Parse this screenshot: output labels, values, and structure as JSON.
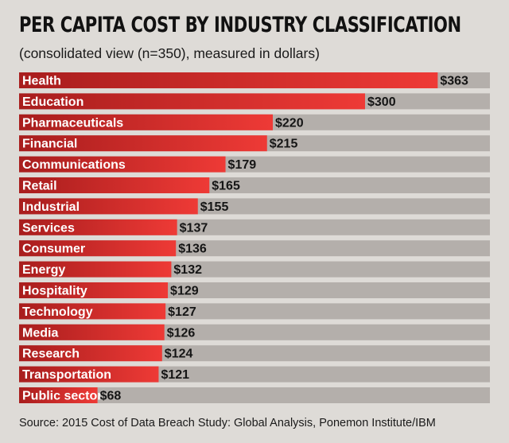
{
  "chart_data": {
    "type": "bar",
    "orientation": "horizontal",
    "title": "PER CAPITA COST BY INDUSTRY CLASSIFICATION",
    "subtitle": "(consolidated view (n=350), measured in dollars)",
    "categories": [
      "Health",
      "Education",
      "Pharmaceuticals",
      "Financial",
      "Communications",
      "Retail",
      "Industrial",
      "Services",
      "Consumer",
      "Energy",
      "Hospitality",
      "Technology",
      "Media",
      "Research",
      "Transportation",
      "Public sector"
    ],
    "values": [
      363,
      300,
      220,
      215,
      179,
      165,
      155,
      137,
      136,
      132,
      129,
      127,
      126,
      124,
      121,
      68
    ],
    "value_labels": [
      "$363",
      "$300",
      "$220",
      "$215",
      "$179",
      "$165",
      "$155",
      "$137",
      "$136",
      "$132",
      "$129",
      "$127",
      "$126",
      "$124",
      "$121",
      "$68"
    ],
    "xlim": [
      0,
      380
    ],
    "grid": false,
    "colors": {
      "bar_start": "#a81d1d",
      "bar_end": "#ee3a36",
      "track": "#b4afab",
      "background": "#dedbd7"
    }
  },
  "source": "Source: 2015 Cost of Data Breach Study: Global Analysis, Ponemon Institute/IBM"
}
